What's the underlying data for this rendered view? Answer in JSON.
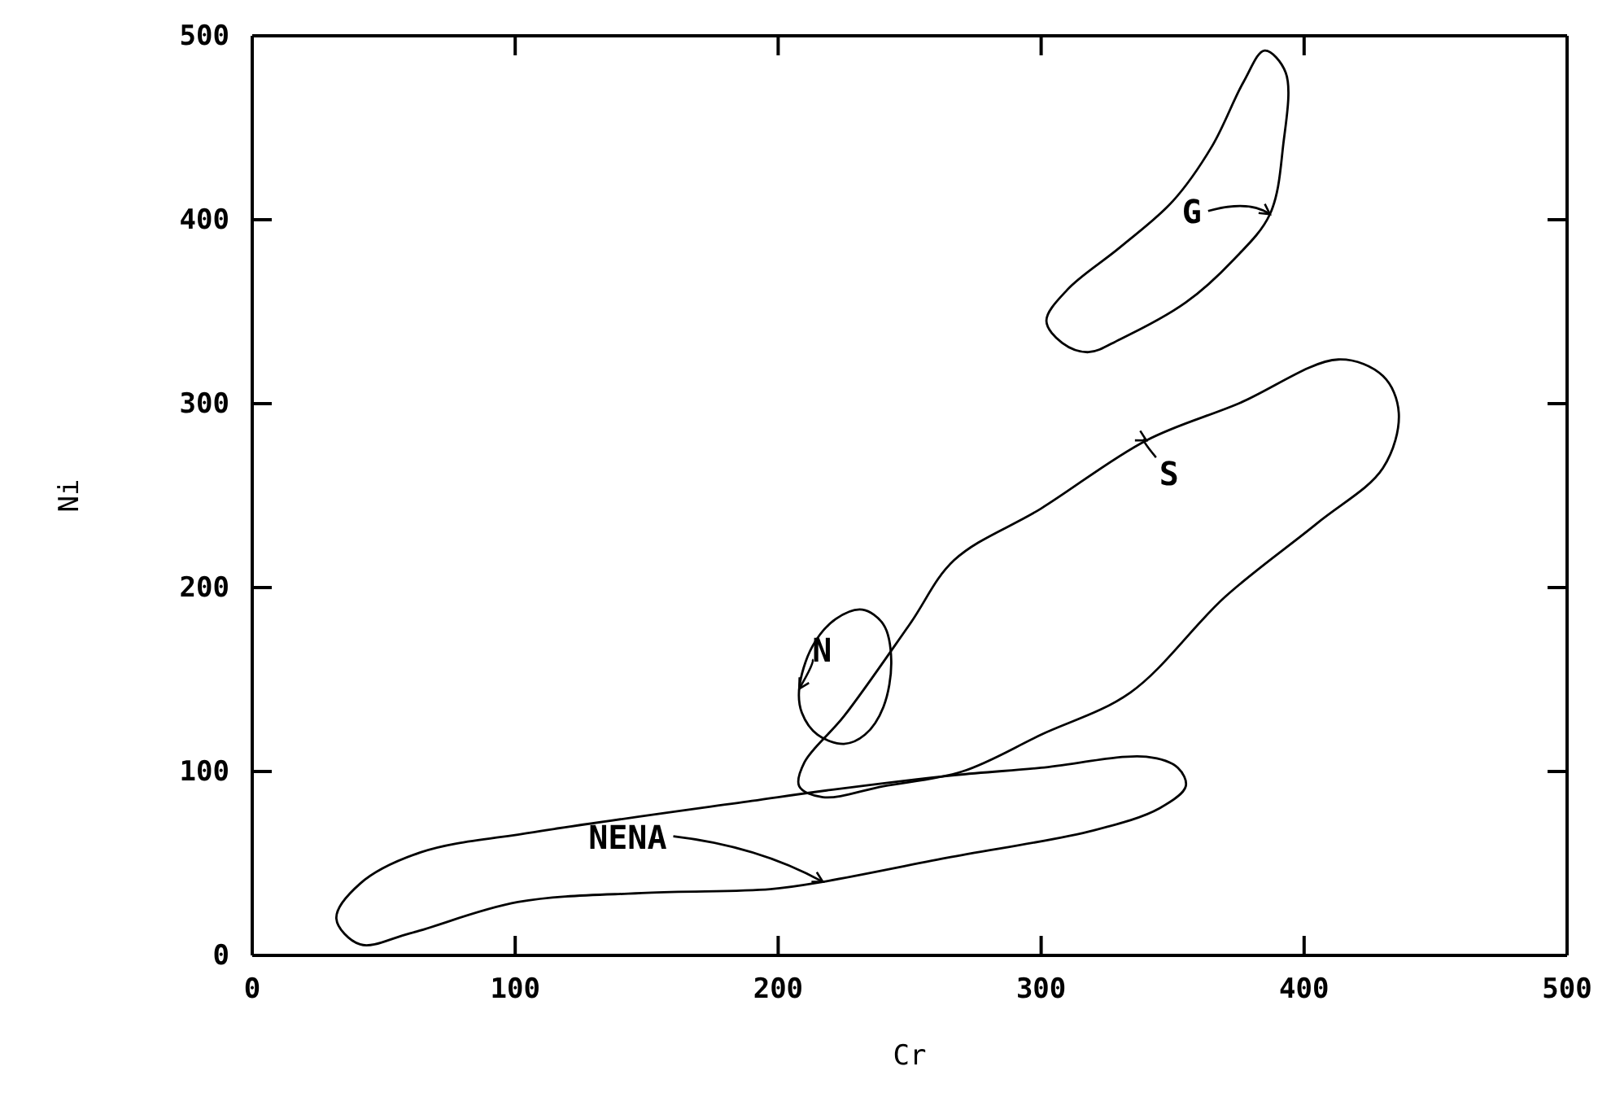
{
  "chart_data": {
    "type": "line",
    "xlabel": "Cr",
    "ylabel": "Ni",
    "xlim": [
      0,
      500
    ],
    "ylim": [
      0,
      500
    ],
    "xticks": [
      0,
      100,
      200,
      300,
      400,
      500
    ],
    "yticks": [
      0,
      100,
      200,
      300,
      400,
      500
    ],
    "annotations": [
      "G",
      "S",
      "N",
      "NENA"
    ]
  }
}
